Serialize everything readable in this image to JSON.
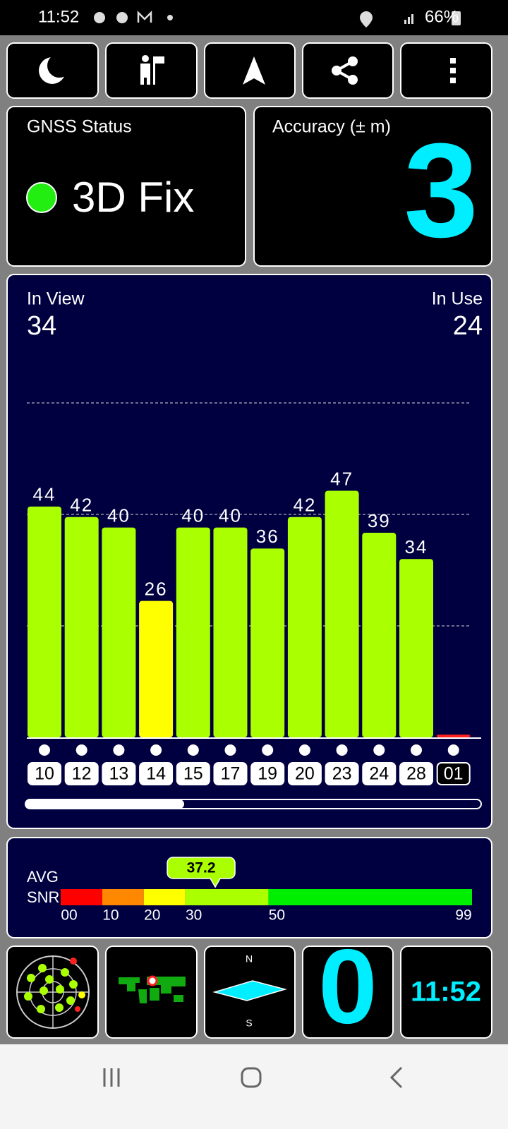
{
  "status_bar": {
    "time": "11:52",
    "battery": "66%"
  },
  "gnss_status": {
    "title": "GNSS Status",
    "fix": "3D Fix"
  },
  "accuracy": {
    "title": "Accuracy (± m)",
    "value": 3
  },
  "satellites": {
    "in_view_label": "In View",
    "in_view": 34,
    "in_use_label": "In Use",
    "in_use": 24
  },
  "chart_data": {
    "type": "bar",
    "categories": [
      "10",
      "12",
      "13",
      "14",
      "15",
      "17",
      "19",
      "20",
      "23",
      "24",
      "28",
      "01"
    ],
    "values": [
      44,
      42,
      40,
      26,
      40,
      40,
      36,
      42,
      47,
      39,
      34,
      0
    ],
    "colors": [
      "#aaff00",
      "#aaff00",
      "#aaff00",
      "#ffff00",
      "#aaff00",
      "#aaff00",
      "#aaff00",
      "#aaff00",
      "#aaff00",
      "#aaff00",
      "#aaff00",
      "#ff2020"
    ],
    "in_use": [
      true,
      true,
      true,
      true,
      true,
      true,
      true,
      true,
      true,
      true,
      true,
      false
    ],
    "ylim": [
      0,
      85
    ],
    "yticks": [
      21.25,
      42.5,
      63.75
    ],
    "grid": true
  },
  "snr": {
    "label_top": "AVG",
    "label_bottom": "SNR",
    "average": 37.2,
    "xlim": [
      0,
      99
    ],
    "xticks": [
      {
        "value": 0,
        "label": "00"
      },
      10,
      20,
      30,
      50,
      99
    ],
    "band_colors": [
      "#ff0000",
      "#ff8800",
      "#ffff00",
      "#aaff00",
      "#00ee00"
    ]
  },
  "tiles": {
    "compass_north": "N",
    "compass_south": "S",
    "speed": 0,
    "clock": "11:52"
  }
}
